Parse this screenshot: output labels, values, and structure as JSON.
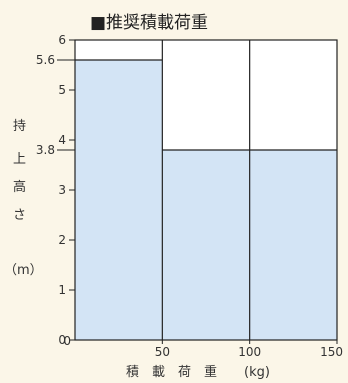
{
  "chart_data": {
    "type": "bar",
    "title": "■推奨積載荷重",
    "xlabel": "積　載　荷　重",
    "xlabel_unit": "(kg)",
    "ylabel_chars": [
      "持",
      "上",
      "高",
      "さ"
    ],
    "ylabel_unit": "（m）",
    "xlim": [
      0,
      150
    ],
    "ylim": [
      0,
      6
    ],
    "x_ticks": [
      50,
      100,
      150
    ],
    "y_ticks": [
      0,
      1,
      2,
      3,
      4,
      5,
      6
    ],
    "special_y_ticks": [
      "5.6",
      "3.8"
    ],
    "grid_x": [
      50,
      100
    ],
    "bars": [
      {
        "x_from": 0,
        "x_to": 50,
        "value": 5.6
      },
      {
        "x_from": 50,
        "x_to": 150,
        "value": 3.8
      }
    ],
    "colors": {
      "fill": "#d3e4f5",
      "line": "#222222",
      "background": "#fbf6e8",
      "plot": "#ffffff"
    }
  }
}
